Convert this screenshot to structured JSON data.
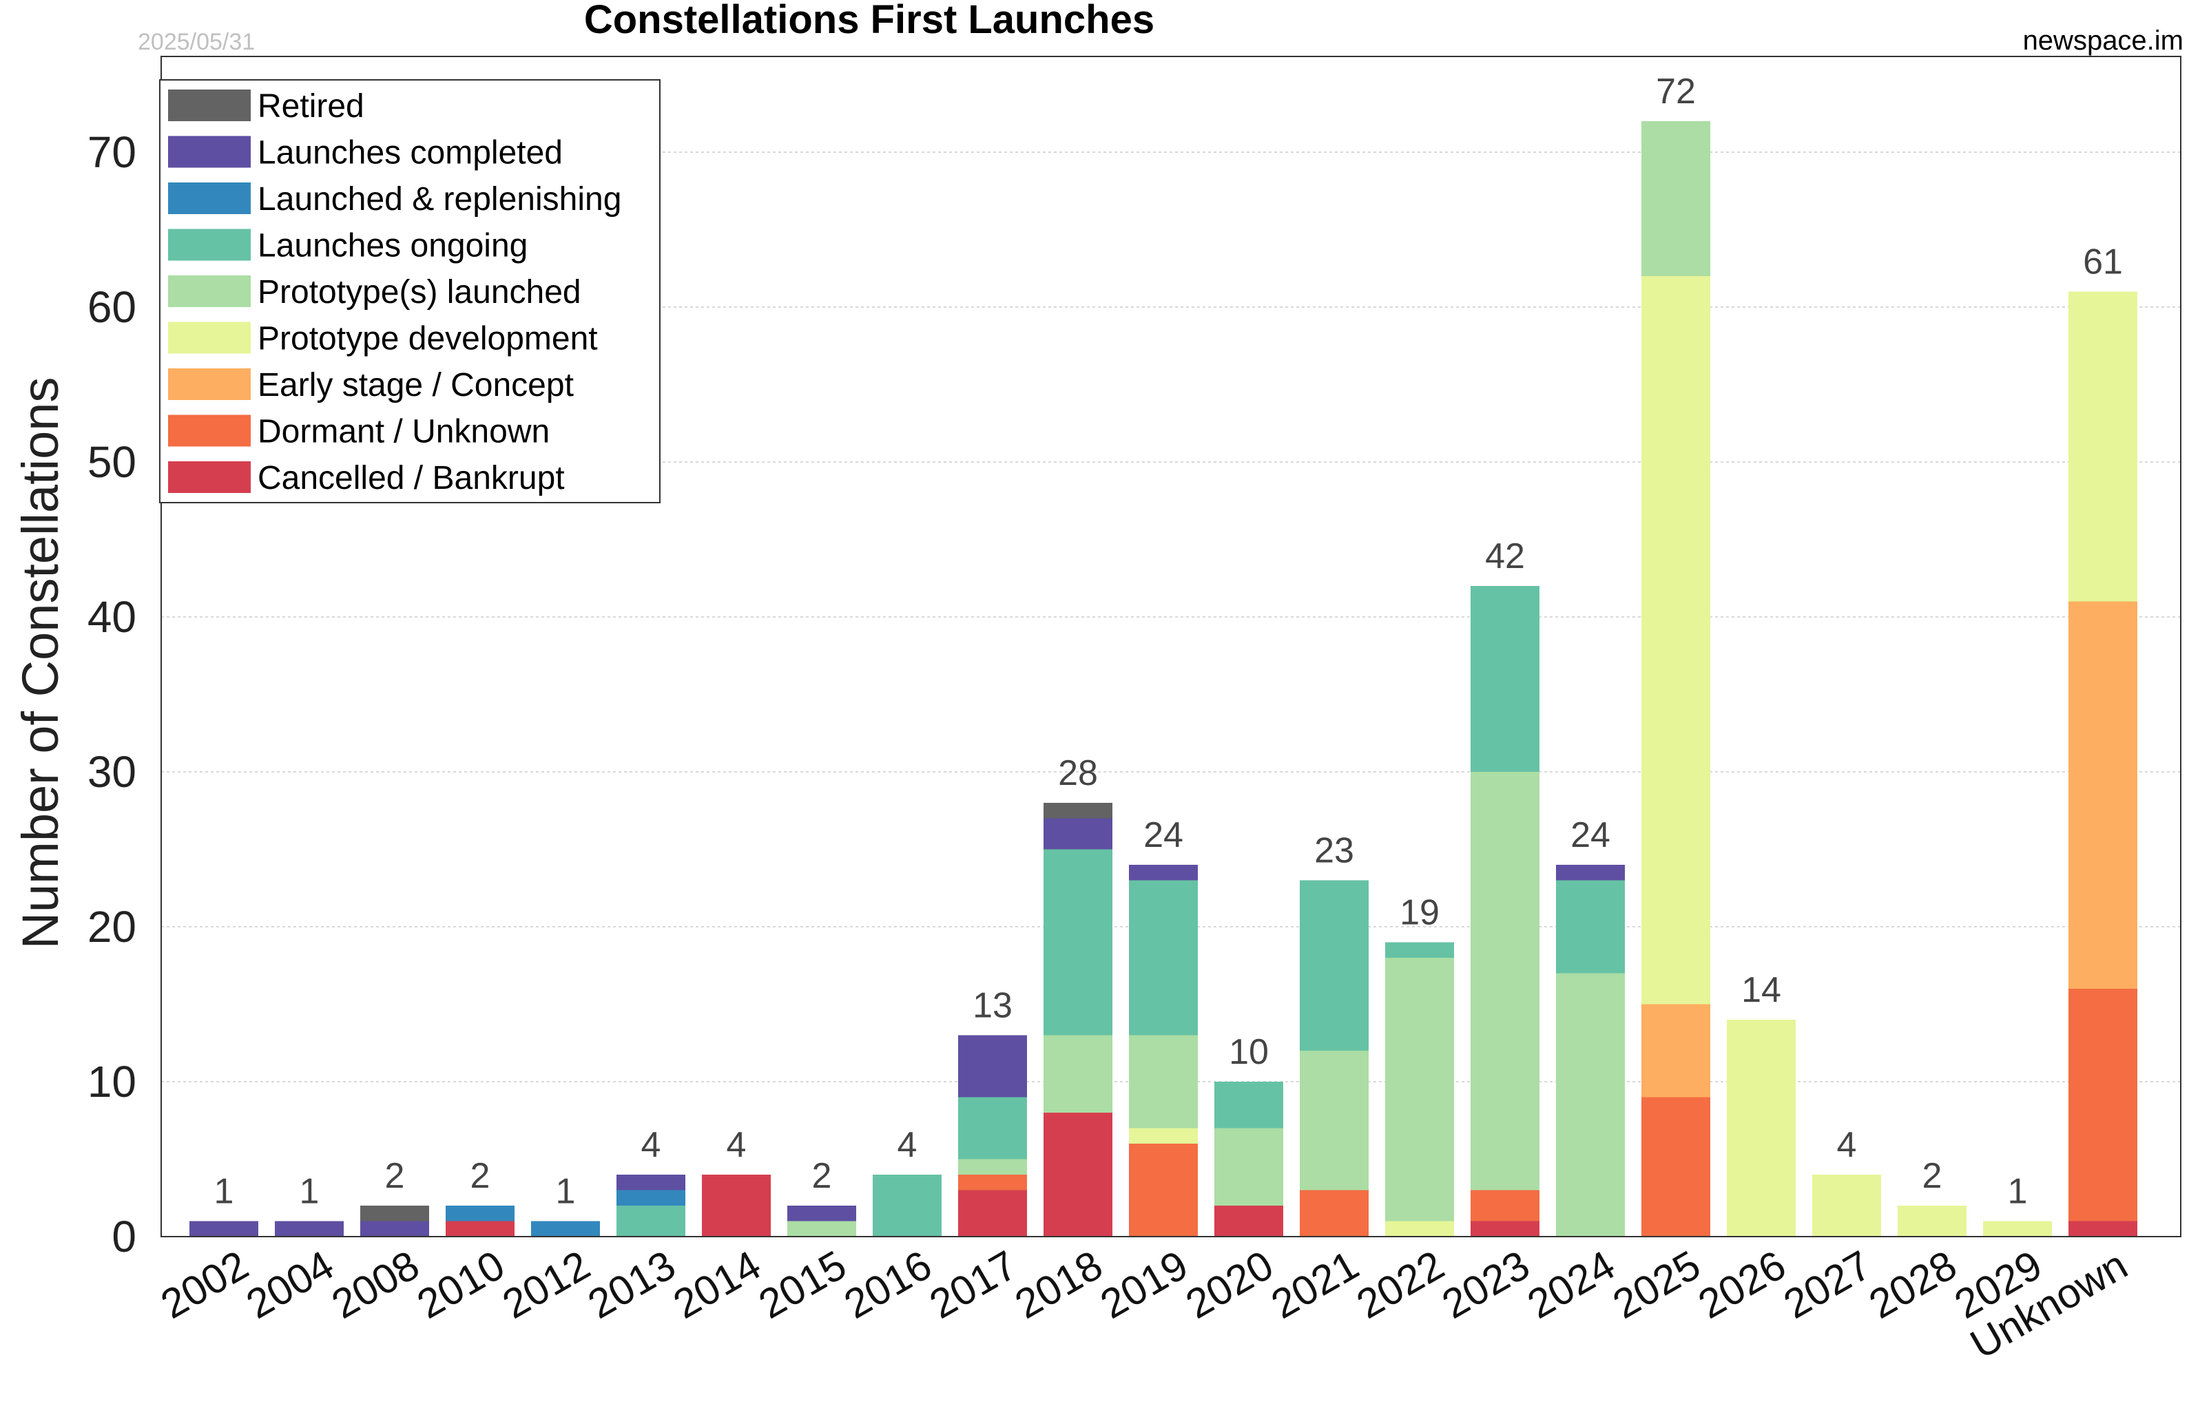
{
  "chart_data": {
    "type": "bar",
    "stacked": true,
    "title": "Constellations First Launches",
    "date": "2025/05/31",
    "source": "newspace.im",
    "ylabel": "Number of Constellations",
    "xlabel": "",
    "ylim": [
      0,
      76
    ],
    "yticks": [
      0,
      10,
      20,
      30,
      40,
      50,
      60,
      70
    ],
    "grid": true,
    "legend_position": "top-left",
    "categories": [
      "2002",
      "2004",
      "2008",
      "2010",
      "2012",
      "2013",
      "2014",
      "2015",
      "2016",
      "2017",
      "2018",
      "2019",
      "2020",
      "2021",
      "2022",
      "2023",
      "2024",
      "2025",
      "2026",
      "2027",
      "2028",
      "2029",
      "Unknown"
    ],
    "totals": [
      1,
      1,
      2,
      2,
      1,
      4,
      4,
      2,
      4,
      13,
      28,
      24,
      10,
      23,
      19,
      42,
      24,
      72,
      14,
      4,
      2,
      1,
      61
    ],
    "series": [
      {
        "name": "Cancelled / Bankrupt",
        "color": "#d53e4f",
        "values": [
          0,
          0,
          0,
          1,
          0,
          0,
          4,
          0,
          0,
          3,
          8,
          0,
          2,
          0,
          0,
          1,
          0,
          0,
          0,
          0,
          0,
          0,
          1
        ]
      },
      {
        "name": "Dormant / Unknown",
        "color": "#f46d43",
        "values": [
          0,
          0,
          0,
          0,
          0,
          0,
          0,
          0,
          0,
          1,
          0,
          6,
          0,
          3,
          0,
          2,
          0,
          9,
          0,
          0,
          0,
          0,
          15
        ]
      },
      {
        "name": "Early stage / Concept",
        "color": "#fdae61",
        "values": [
          0,
          0,
          0,
          0,
          0,
          0,
          0,
          0,
          0,
          0,
          0,
          0,
          0,
          0,
          0,
          0,
          0,
          6,
          0,
          0,
          0,
          0,
          25
        ]
      },
      {
        "name": "Prototype development",
        "color": "#e6f598",
        "values": [
          0,
          0,
          0,
          0,
          0,
          0,
          0,
          0,
          0,
          0,
          0,
          1,
          0,
          0,
          1,
          0,
          0,
          47,
          14,
          4,
          2,
          1,
          20
        ]
      },
      {
        "name": "Prototype(s) launched",
        "color": "#abdda4",
        "values": [
          0,
          0,
          0,
          0,
          0,
          0,
          0,
          1,
          0,
          1,
          5,
          6,
          5,
          9,
          17,
          27,
          17,
          10,
          0,
          0,
          0,
          0,
          0
        ]
      },
      {
        "name": "Launches ongoing",
        "color": "#66c2a5",
        "values": [
          0,
          0,
          0,
          0,
          0,
          2,
          0,
          0,
          4,
          4,
          12,
          10,
          3,
          11,
          1,
          12,
          6,
          0,
          0,
          0,
          0,
          0,
          0
        ]
      },
      {
        "name": "Launched & replenishing",
        "color": "#3288bd",
        "values": [
          0,
          0,
          0,
          1,
          1,
          1,
          0,
          0,
          0,
          0,
          0,
          0,
          0,
          0,
          0,
          0,
          0,
          0,
          0,
          0,
          0,
          0,
          0
        ]
      },
      {
        "name": "Launches completed",
        "color": "#5e4fa2",
        "values": [
          1,
          1,
          1,
          0,
          0,
          1,
          0,
          1,
          0,
          4,
          2,
          1,
          0,
          0,
          0,
          0,
          1,
          0,
          0,
          0,
          0,
          0,
          0
        ]
      },
      {
        "name": "Retired",
        "color": "#636363",
        "values": [
          0,
          0,
          1,
          0,
          0,
          0,
          0,
          0,
          0,
          0,
          1,
          0,
          0,
          0,
          0,
          0,
          0,
          0,
          0,
          0,
          0,
          0,
          0
        ]
      }
    ],
    "legend_order": [
      "Retired",
      "Launches completed",
      "Launched & replenishing",
      "Launches ongoing",
      "Prototype(s) launched",
      "Prototype development",
      "Early stage / Concept",
      "Dormant / Unknown",
      "Cancelled / Bankrupt"
    ]
  }
}
